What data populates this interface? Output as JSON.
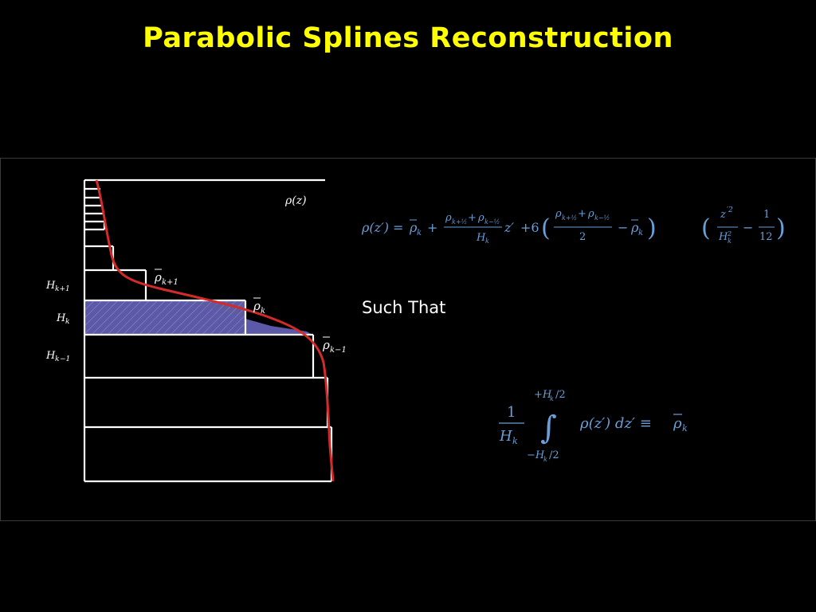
{
  "title": "Parabolic Splines Reconstruction",
  "colors": {
    "background": "#000000",
    "title": "#ffff00",
    "lines": "#ffffff",
    "curve": "#d42a2a",
    "fill": "#5c5aa8",
    "equation": "#6a9fd8",
    "text": "#ffffff"
  },
  "diagram": {
    "curve_label": "ρ(z)",
    "layer_labels": {
      "upper": "H",
      "upper_sub": "k+1",
      "mid": "H",
      "mid_sub": "k",
      "lower": "H",
      "lower_sub": "−1",
      "lower_sub_prefix": "k"
    },
    "rho_labels": {
      "upper_sub": "k+1",
      "mid_sub": "k",
      "lower_sub": "k−1"
    }
  },
  "such_that": "Such That"
}
